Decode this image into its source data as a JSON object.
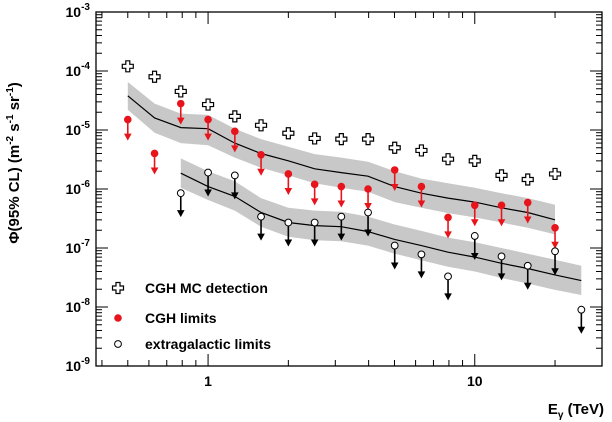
{
  "chart_data": {
    "type": "scatter",
    "x_scale": "log",
    "y_scale": "log",
    "xlim": [
      0.38,
      30
    ],
    "ylim": [
      1e-09,
      0.001
    ],
    "xlabel": {
      "base": "E",
      "sub": "γ",
      "rest": " (TeV)"
    },
    "ylabel": {
      "parts": [
        {
          "t": "Φ(95% CL) (m",
          "s": "n"
        },
        {
          "t": "-2",
          "s": "sup"
        },
        {
          "t": " s",
          "s": "n"
        },
        {
          "t": "-1",
          "s": "sup"
        },
        {
          "t": " sr",
          "s": "n"
        },
        {
          "t": "-1",
          "s": "sup"
        },
        {
          "t": ")",
          "s": "n"
        }
      ]
    },
    "x_ticks": [
      {
        "v": 1,
        "label": "1"
      },
      {
        "v": 10,
        "label": "10"
      }
    ],
    "y_ticks": [
      {
        "v": 1e-09,
        "mant": "10",
        "exp": "-9"
      },
      {
        "v": 1e-08,
        "mant": "10",
        "exp": "-8"
      },
      {
        "v": 1e-07,
        "mant": "10",
        "exp": "-7"
      },
      {
        "v": 1e-06,
        "mant": "10",
        "exp": "-6"
      },
      {
        "v": 1e-05,
        "mant": "10",
        "exp": "-5"
      },
      {
        "v": 0.0001,
        "mant": "10",
        "exp": "-4"
      },
      {
        "v": 0.001,
        "mant": "10",
        "exp": "-3"
      }
    ],
    "legend": [
      {
        "name": "CGH MC detection",
        "marker": "cross",
        "color": "#000000"
      },
      {
        "name": "CGH limits",
        "marker": "filled-circle",
        "color": "#e8141c"
      },
      {
        "name": "extragalactic limits",
        "marker": "open-circle",
        "color": "#000000"
      }
    ],
    "legend_position": "bottom-left",
    "mc_detection": {
      "x": [
        0.5,
        0.63,
        0.79,
        1.0,
        1.26,
        1.58,
        2.0,
        2.51,
        3.16,
        3.98,
        5.01,
        6.31,
        7.94,
        10.0,
        12.6,
        15.8,
        20.0
      ],
      "y": [
        0.00012,
        8e-05,
        4.5e-05,
        2.7e-05,
        1.7e-05,
        1.2e-05,
        8.8e-06,
        7.2e-06,
        7e-06,
        7e-06,
        5e-06,
        4.5e-06,
        3.2e-06,
        3e-06,
        1.7e-06,
        1.45e-06,
        1.8e-06
      ]
    },
    "cgh_limits": {
      "color": "#e8141c",
      "x": [
        0.5,
        0.63,
        0.79,
        1.0,
        1.26,
        1.58,
        2.0,
        2.51,
        3.16,
        3.98,
        5.01,
        6.31,
        7.94,
        10.0,
        12.6,
        15.8,
        20.0
      ],
      "y": [
        1.5e-05,
        4e-06,
        2.8e-05,
        1.5e-05,
        9.5e-06,
        3.8e-06,
        1.8e-06,
        1.2e-06,
        1.1e-06,
        1e-06,
        2.1e-06,
        1.1e-06,
        3.3e-07,
        5.3e-07,
        5.3e-07,
        5.9e-07,
        2.2e-07
      ]
    },
    "extragalactic_limits": {
      "x": [
        0.79,
        1.0,
        1.26,
        1.58,
        2.0,
        2.51,
        3.16,
        3.98,
        5.01,
        6.31,
        7.94,
        10.0,
        12.6,
        15.8,
        20.0,
        25.1
      ],
      "y": [
        8.5e-07,
        1.9e-06,
        1.7e-06,
        3.4e-07,
        2.7e-07,
        2.7e-07,
        3.4e-07,
        4e-07,
        1.1e-07,
        7.8e-08,
        3.3e-08,
        1.6e-07,
        7.2e-08,
        5e-08,
        8.8e-08,
        9e-09
      ]
    },
    "cgh_sensitivity_curve": {
      "x": [
        0.5,
        0.63,
        0.79,
        1.0,
        1.26,
        1.58,
        2.0,
        2.51,
        3.16,
        3.98,
        5.01,
        6.31,
        7.94,
        10.0,
        12.6,
        15.8,
        20.0
      ],
      "y": [
        3.8e-05,
        1.6e-05,
        1.1e-05,
        1.05e-05,
        6e-06,
        4e-06,
        3e-06,
        2.2e-06,
        1.9e-06,
        1.65e-06,
        1.1e-06,
        8.5e-07,
        7e-07,
        6e-07,
        4.8e-07,
        4e-07,
        3e-07
      ],
      "band_low": [
        2.2e-05,
        9e-06,
        6e-06,
        5.5e-06,
        3.4e-06,
        2.3e-06,
        1.7e-06,
        1.25e-06,
        1.05e-06,
        9e-07,
        6e-07,
        4.8e-07,
        3.9e-07,
        3.3e-07,
        2.7e-07,
        2.2e-07,
        1.7e-07
      ],
      "band_high": [
        6.5e-05,
        2.8e-05,
        1.9e-05,
        1.8e-05,
        1.05e-05,
        7e-06,
        5.2e-06,
        3.9e-06,
        3.4e-06,
        2.9e-06,
        2e-06,
        1.5e-06,
        1.25e-06,
        1.05e-06,
        8.5e-07,
        7e-07,
        5.4e-07
      ]
    },
    "extragalactic_sensitivity_curve": {
      "x": [
        0.79,
        1.0,
        1.26,
        1.58,
        2.0,
        2.51,
        3.16,
        3.98,
        5.01,
        6.31,
        7.94,
        10.0,
        12.6,
        15.8,
        20.0,
        25.1
      ],
      "y": [
        1.85e-06,
        1.1e-06,
        7.5e-07,
        4e-07,
        2.7e-07,
        2.4e-07,
        2.3e-07,
        1.9e-07,
        1.4e-07,
        1.1e-07,
        8.5e-08,
        7e-08,
        5.5e-08,
        4.5e-08,
        3.5e-08,
        2.8e-08
      ],
      "band_low": [
        1.05e-06,
        6.5e-07,
        4.3e-07,
        2.3e-07,
        1.55e-07,
        1.35e-07,
        1.3e-07,
        1.1e-07,
        8e-08,
        6.2e-08,
        4.8e-08,
        4e-08,
        3.1e-08,
        2.5e-08,
        1.95e-08,
        1.6e-08
      ],
      "band_high": [
        3.3e-06,
        2e-06,
        1.35e-06,
        7e-07,
        4.8e-07,
        4.3e-07,
        4.1e-07,
        3.4e-07,
        2.5e-07,
        1.95e-07,
        1.5e-07,
        1.25e-07,
        1e-07,
        8e-08,
        6.3e-08,
        5e-08
      ]
    }
  }
}
